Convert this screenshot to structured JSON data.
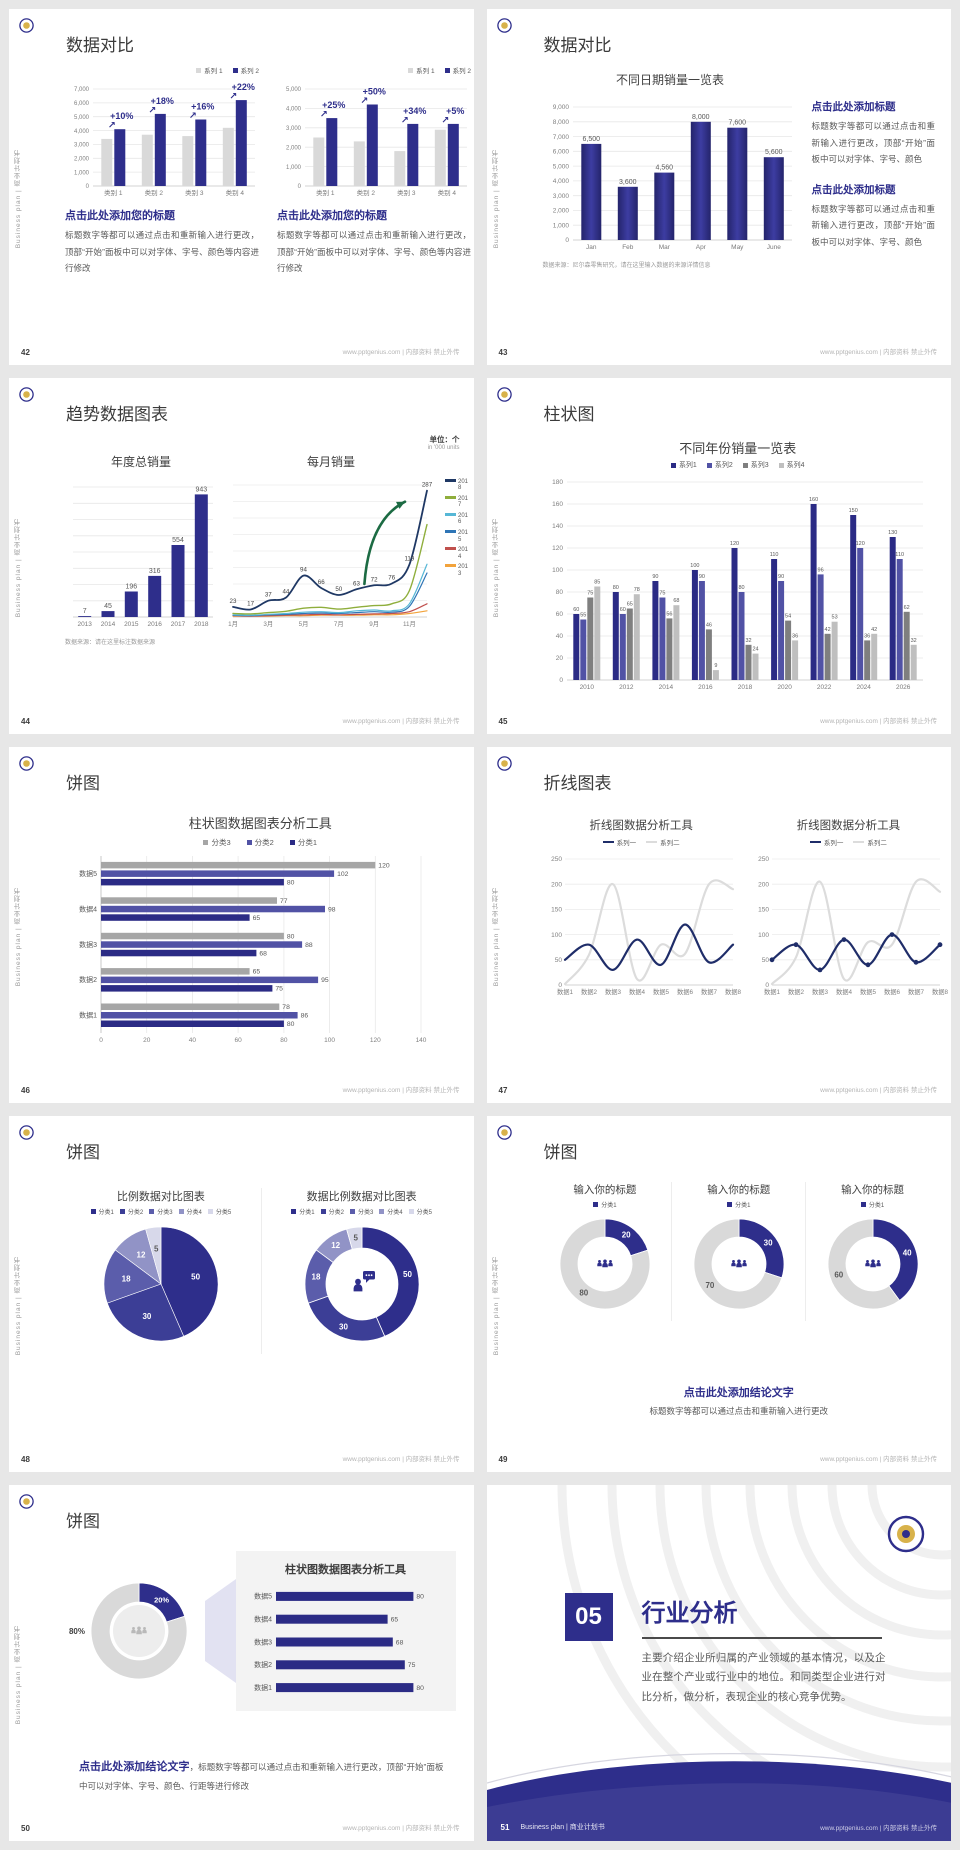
{
  "footer": {
    "site": "www.pptgenius.com | 内部资料 禁止外传"
  },
  "sidebar_text": "Business plan | 商业计划书",
  "colors": {
    "navy": "#2e2e8b",
    "purple": "#5152a5",
    "gray_dark": "#7f7f7f",
    "gray_light": "#bfbfbf",
    "bar_gray": "#d9d9d9",
    "green_arrow": "#1c6b43"
  },
  "slides": {
    "s42": {
      "page": "42",
      "title": "数据对比",
      "blocks": [
        {
          "heading": "点击此处添加您的标题",
          "body": "标题数字等都可以通过点击和重新输入进行更改，顶部“开始”面板中可以对字体、字号、颜色等内容进行修改"
        },
        {
          "heading": "点击此处添加您的标题",
          "body": "标题数字等都可以通过点击和重新输入进行更改，顶部“开始”面板中可以对字体、字号、颜色等内容进行修改"
        }
      ]
    },
    "s43": {
      "page": "43",
      "title": "数据对比",
      "footnote": "数据来源：尼尔森零售研究，请在这里输入数据的来源详情信息",
      "blocks": [
        {
          "heading": "点击此处添加标题",
          "body": "标题数字等都可以通过点击和重新输入进行更改，顶部“开始”面板中可以对字体、字号、颜色"
        },
        {
          "heading": "点击此处添加标题",
          "body": "标题数字等都可以通过点击和重新输入进行更改，顶部“开始”面板中可以对字体、字号、颜色"
        }
      ]
    },
    "s44": {
      "page": "44",
      "title": "趋势数据图表",
      "unit_cn": "单位：个",
      "unit_en": "in '000 units",
      "footnote": "数据来源：请在这里标注数据来源"
    },
    "s45": {
      "page": "45",
      "title": "柱状图"
    },
    "s46": {
      "page": "46",
      "title": "饼图"
    },
    "s47": {
      "page": "47",
      "title": "折线图表"
    },
    "s48": {
      "page": "48",
      "title": "饼图"
    },
    "s49": {
      "page": "49",
      "title": "饼图",
      "conclusion_heading": "点击此处添加结论文字",
      "conclusion_body": "标题数字等都可以通过点击和重新输入进行更改"
    },
    "s50": {
      "page": "50",
      "title": "饼图",
      "conclusion_heading": "点击此处添加结论文字",
      "conclusion_body": "，标题数字等都可以通过点击和重新输入进行更改，顶部“开始”面板中可以对字体、字号、颜色、行距等进行修改"
    },
    "s51": {
      "page": "51",
      "number": "05",
      "title": "行业分析",
      "footer_label": "Business plan | 商业计划书",
      "body": "主要介绍企业所归属的产业领域的基本情况，以及企业在整个产业或行业中的地位。和同类型企业进行对比分析，做分析，表现企业的核心竞争优势。"
    }
  },
  "chart_data": [
    {
      "id": "c42a",
      "type": "bar",
      "title": "",
      "categories": [
        "类别 1",
        "类别 2",
        "类别 3",
        "类别 4"
      ],
      "legend": [
        "系列 1",
        "系列 2"
      ],
      "ylim": [
        0,
        7000
      ],
      "ystep": 1000,
      "pct_labels": [
        "+10%",
        "+18%",
        "+16%",
        "+22%"
      ],
      "series": [
        {
          "name": "系列 1",
          "color": "#d9d9d9",
          "values": [
            3400,
            3700,
            3600,
            4200
          ]
        },
        {
          "name": "系列 2",
          "color": "#2e2e8b",
          "values": [
            4100,
            5200,
            4800,
            6200
          ]
        }
      ]
    },
    {
      "id": "c42b",
      "type": "bar",
      "title": "",
      "categories": [
        "类别 1",
        "类别 2",
        "类别 3",
        "类别 4"
      ],
      "legend": [
        "系列 1",
        "系列 2"
      ],
      "ylim": [
        0,
        5000
      ],
      "ystep": 1000,
      "pct_labels": [
        "+25%",
        "+50%",
        "+34%",
        "+5%"
      ],
      "series": [
        {
          "name": "系列 1",
          "color": "#d9d9d9",
          "values": [
            2500,
            2300,
            1800,
            2900
          ]
        },
        {
          "name": "系列 2",
          "color": "#2e2e8b",
          "values": [
            3500,
            4200,
            3200,
            3200
          ]
        }
      ]
    },
    {
      "id": "c43",
      "type": "bar",
      "title": "不同日期销量一览表",
      "categories": [
        "Jan",
        "Feb",
        "Mar",
        "Apr",
        "May",
        "June"
      ],
      "ylim": [
        0,
        9000
      ],
      "ystep": 1000,
      "series": [
        {
          "name": "销量",
          "color": "#2e2e8b",
          "values": [
            6500,
            3600,
            4560,
            8000,
            7600,
            5600
          ],
          "labels": [
            "6,500",
            "3,600",
            "4,560",
            "8,000",
            "7,600",
            "5,600"
          ]
        }
      ]
    },
    {
      "id": "c44a",
      "type": "bar",
      "title": "年度总销量",
      "categories": [
        "2013",
        "2014",
        "2015",
        "2016",
        "2017",
        "2018"
      ],
      "ylim": [
        0,
        1000
      ],
      "ystep": 125,
      "series": [
        {
          "name": "年度总销量",
          "color": "#2e2e8b",
          "values": [
            7,
            45,
            196,
            316,
            554,
            943
          ],
          "labels": [
            "7",
            "45",
            "196",
            "316",
            "554",
            "943"
          ]
        }
      ]
    },
    {
      "id": "c44b",
      "type": "line",
      "title": "每月销量",
      "categories": [
        "1月",
        "2月",
        "3月",
        "4月",
        "5月",
        "6月",
        "7月",
        "8月",
        "9月",
        "10月",
        "11月",
        "12月"
      ],
      "legend": [
        "2018",
        "2017",
        "2016",
        "2015",
        "2014",
        "2013"
      ],
      "ylim": [
        0,
        300
      ],
      "ystep": 37.5,
      "series": [
        {
          "name": "2018",
          "color": "#1f3864",
          "width": 1.8,
          "values": [
            23,
            17,
            37,
            44,
            94,
            66,
            50,
            63,
            72,
            76,
            119,
            287
          ],
          "labels": [
            "23",
            "17",
            "37",
            "44",
            "94",
            "66",
            "50",
            "63",
            "72",
            "76",
            "119",
            "287"
          ]
        },
        {
          "name": "2017",
          "color": "#8fae3c",
          "width": 1.4,
          "values": [
            8,
            7,
            10,
            13,
            20,
            22,
            18,
            22,
            26,
            30,
            60,
            210
          ]
        },
        {
          "name": "2016",
          "color": "#56b7d6",
          "width": 1.2,
          "values": [
            5,
            4,
            6,
            8,
            11,
            12,
            10,
            14,
            16,
            14,
            30,
            120
          ]
        },
        {
          "name": "2015",
          "color": "#2e75b6",
          "width": 1.2,
          "values": [
            4,
            3,
            5,
            6,
            8,
            9,
            8,
            10,
            12,
            11,
            24,
            100
          ]
        },
        {
          "name": "2014",
          "color": "#c0504d",
          "width": 1.2,
          "values": [
            3,
            2,
            3,
            4,
            5,
            6,
            5,
            6,
            7,
            8,
            12,
            30
          ]
        },
        {
          "name": "2013",
          "color": "#f2a33c",
          "width": 1.2,
          "values": [
            2,
            2,
            2,
            3,
            3,
            4,
            4,
            4,
            5,
            5,
            8,
            14
          ]
        }
      ]
    },
    {
      "id": "c45",
      "type": "bar",
      "title": "不同年份销量一览表",
      "categories": [
        "2010",
        "2012",
        "2014",
        "2016",
        "2018",
        "2020",
        "2022",
        "2024",
        "2026"
      ],
      "legend": [
        "系列1",
        "系列2",
        "系列3",
        "系列4"
      ],
      "ylim": [
        0,
        180
      ],
      "ystep": 20,
      "series": [
        {
          "name": "系列1",
          "color": "#2b2b85",
          "values": [
            60,
            80,
            90,
            100,
            120,
            110,
            160,
            150,
            130
          ],
          "labels": [
            "60",
            "80",
            "90",
            "100",
            "120",
            "110",
            "160",
            "150",
            "130"
          ]
        },
        {
          "name": "系列2",
          "color": "#5152a5",
          "values": [
            55,
            60,
            75,
            90,
            80,
            90,
            96,
            120,
            110
          ],
          "labels": [
            "55",
            "60",
            "75",
            "90",
            "80",
            "90",
            "96",
            "120",
            "110"
          ]
        },
        {
          "name": "系列3",
          "color": "#7f7f7f",
          "values": [
            75,
            65,
            56,
            46,
            32,
            54,
            42,
            36,
            62
          ],
          "labels": [
            "75",
            "65",
            "56",
            "46",
            "32",
            "54",
            "42",
            "36",
            "62"
          ]
        },
        {
          "name": "系列4",
          "color": "#bfbfbf",
          "values": [
            85,
            78,
            68,
            9,
            24,
            36,
            53,
            42,
            32
          ],
          "labels": [
            "85",
            "78",
            "68",
            "9",
            "24",
            "36",
            "53",
            "42",
            "32"
          ]
        }
      ]
    },
    {
      "id": "c46",
      "type": "hbar",
      "title": "柱状图数据图表分析工具",
      "categories": [
        "数据5",
        "数据4",
        "数据3",
        "数据2",
        "数据1"
      ],
      "legend": [
        "分类3",
        "分类2",
        "分类1"
      ],
      "xlim": [
        0,
        140
      ],
      "xstep": 20,
      "series": [
        {
          "name": "分类3",
          "color": "#a6a6a6",
          "values": [
            120,
            77,
            80,
            65,
            78
          ]
        },
        {
          "name": "分类2",
          "color": "#5152a5",
          "values": [
            102,
            98,
            88,
            95,
            86
          ]
        },
        {
          "name": "分类1",
          "color": "#2b2b85",
          "values": [
            80,
            65,
            68,
            75,
            80
          ]
        }
      ]
    },
    {
      "id": "c47a",
      "type": "line",
      "title": "折线图数据分析工具",
      "categories": [
        "数据1",
        "数据2",
        "数据3",
        "数据4",
        "数据5",
        "数据6",
        "数据7",
        "数据8"
      ],
      "legend": [
        "系列一",
        "系列二"
      ],
      "ylim": [
        0,
        250
      ],
      "ystep": 50,
      "series": [
        {
          "name": "系列一",
          "color": "#1f2d69",
          "width": 2.2,
          "values": [
            50,
            80,
            30,
            90,
            40,
            120,
            45,
            80
          ]
        },
        {
          "name": "系列二",
          "color": "#dcdcdc",
          "width": 2.2,
          "values": [
            2,
            60,
            200,
            12,
            80,
            62,
            200,
            190
          ]
        }
      ]
    },
    {
      "id": "c47b",
      "type": "line",
      "title": "折线图数据分析工具",
      "categories": [
        "数据1",
        "数据2",
        "数据3",
        "数据4",
        "数据5",
        "数据6",
        "数据7",
        "数据8"
      ],
      "legend": [
        "系列一",
        "系列二"
      ],
      "ylim": [
        0,
        250
      ],
      "ystep": 50,
      "series": [
        {
          "name": "系列一",
          "color": "#1f2d69",
          "width": 2.2,
          "markers": true,
          "values": [
            50,
            80,
            30,
            90,
            40,
            100,
            45,
            80
          ]
        },
        {
          "name": "系列二",
          "color": "#dcdcdc",
          "width": 2.2,
          "values": [
            2,
            55,
            205,
            12,
            85,
            80,
            205,
            185
          ]
        }
      ]
    },
    {
      "id": "c48a",
      "type": "pie",
      "title": "比例数据对比图表",
      "legend": [
        "分类1",
        "分类2",
        "分类3",
        "分类4",
        "分类5"
      ],
      "values": [
        50,
        30,
        18,
        12,
        5
      ],
      "labels": [
        "50",
        "30",
        "18",
        "12",
        "5"
      ],
      "colors": [
        "#2e2e8b",
        "#3c3e96",
        "#5b5dab",
        "#9193c6",
        "#d7d8ea"
      ],
      "label_colors": [
        "#ffffff",
        "#ffffff",
        "#ffffff",
        "#ffffff",
        "#595959"
      ]
    },
    {
      "id": "c48b",
      "type": "pie",
      "title": "数据比例数据对比图表",
      "legend": [
        "分类1",
        "分类2",
        "分类3",
        "分类4",
        "分类5"
      ],
      "values": [
        50,
        30,
        18,
        12,
        5
      ],
      "labels": [
        "50",
        "30",
        "18",
        "12",
        "5"
      ],
      "colors": [
        "#2e2e8b",
        "#3c3e96",
        "#5b5dab",
        "#9193c6",
        "#d7d8ea"
      ],
      "label_colors": [
        "#ffffff",
        "#ffffff",
        "#ffffff",
        "#ffffff",
        "#595959"
      ]
    },
    {
      "id": "c49a",
      "type": "pie",
      "title": "输入你的标题",
      "legend": [
        "分类1"
      ],
      "values": [
        20,
        80
      ],
      "labels": [
        "20",
        "80"
      ],
      "colors": [
        "#2e2e8b",
        "#d9d9d9"
      ],
      "label_colors": [
        "#ffffff",
        "#595959"
      ]
    },
    {
      "id": "c49b",
      "type": "pie",
      "title": "输入你的标题",
      "legend": [
        "分类1"
      ],
      "values": [
        30,
        70
      ],
      "labels": [
        "30",
        "70"
      ],
      "colors": [
        "#2e2e8b",
        "#d9d9d9"
      ],
      "label_colors": [
        "#ffffff",
        "#595959"
      ]
    },
    {
      "id": "c49c",
      "type": "pie",
      "title": "输入你的标题",
      "legend": [
        "分类1"
      ],
      "values": [
        40,
        60
      ],
      "labels": [
        "40",
        "60"
      ],
      "colors": [
        "#2e2e8b",
        "#d9d9d9"
      ],
      "label_colors": [
        "#ffffff",
        "#595959"
      ]
    },
    {
      "id": "c50d",
      "type": "pie",
      "title": "",
      "values": [
        20,
        80
      ],
      "labels": [
        "20%",
        ""
      ],
      "colors": [
        "#2e2e8b",
        "#d9d9d9"
      ],
      "label_colors": [
        "#ffffff",
        "#595959"
      ],
      "out_labels": [
        {
          "text": "80%",
          "dx": -62,
          "dy": 3,
          "anchor": "middle",
          "color": "#3f3f3f",
          "fs": 8
        }
      ]
    },
    {
      "id": "c50b",
      "type": "hbar",
      "title": "柱状图数据图表分析工具",
      "categories": [
        "数据5",
        "数据4",
        "数据3",
        "数据2",
        "数据1"
      ],
      "xlim": [
        0,
        85
      ],
      "xstep": 85,
      "series": [
        {
          "name": "数值",
          "color": "#2b2b85",
          "values": [
            80,
            65,
            68,
            75,
            80
          ]
        }
      ]
    }
  ]
}
